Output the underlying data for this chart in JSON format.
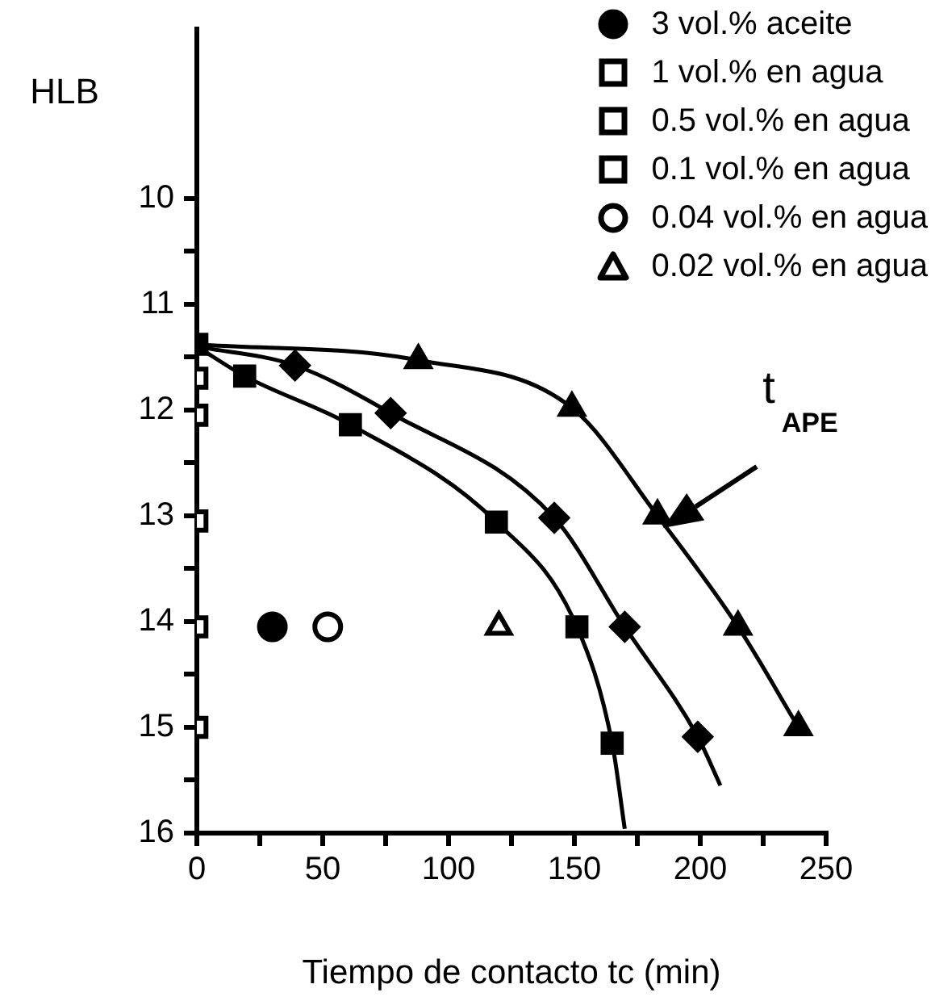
{
  "chart_data": {
    "type": "scatter",
    "ylabel": "HLB",
    "xlabel": "Tiempo de contacto tc (min)",
    "xlim": [
      0,
      250
    ],
    "xticks": [
      0,
      {
        "value": 25,
        "label": null
      },
      50,
      {
        "value": 75,
        "label": null
      },
      100,
      {
        "value": 125,
        "label": null
      },
      150,
      {
        "value": 175,
        "label": null
      },
      200,
      {
        "value": 225,
        "label": null
      },
      250
    ],
    "ylim": [
      16,
      8.4
    ],
    "yticks": [
      10,
      {
        "value": 10.5,
        "label": null
      },
      11,
      {
        "value": 11.5,
        "label": null
      },
      12,
      {
        "value": 12.5,
        "label": null
      },
      13,
      {
        "value": 13.5,
        "label": null
      },
      14,
      {
        "value": 14.5,
        "label": null
      },
      15,
      {
        "value": 15.5,
        "label": null
      },
      16
    ],
    "grid": false,
    "legend": "top right",
    "annotations": [
      {
        "text": "t$_{APE}$",
        "x": 185,
        "y": 13.12
      }
    ],
    "series": [
      {
        "name": "3 vol.% aceite",
        "marker": "circle",
        "color": "#000000",
        "x": [
          30
        ],
        "values": [
          14.05
        ]
      },
      {
        "name": "1 vol.% en agua",
        "marker": "square",
        "color": "#ffffff",
        "x": [
          0,
          0
        ],
        "values": [
          13.05,
          15.0
        ]
      },
      {
        "name": "0.5 vol.% en agua",
        "marker": "square",
        "color": "#ffffff",
        "x": [
          0,
          0
        ],
        "values": [
          12.05,
          14.05
        ]
      },
      {
        "name": "0.1 vol.% en agua",
        "marker": "square",
        "color": "#ffffff",
        "x": [
          0
        ],
        "values": [
          11.7
        ]
      },
      {
        "name": "0.04 vol.% en agua",
        "marker": "circle",
        "color": "#ffffff",
        "x": [
          52
        ],
        "values": [
          14.05
        ]
      },
      {
        "name": "0.02 vol.% en agua",
        "marker": "triangle",
        "color": "#ffffff",
        "x": [
          120
        ],
        "values": [
          14.05
        ]
      },
      {
        "type": "line",
        "marker": "none",
        "color": "#000000",
        "x": [
          0,
          19,
          61,
          119,
          151,
          165,
          170
        ],
        "values": [
          11.4,
          11.68,
          12.14,
          13.06,
          14.05,
          15.15,
          15.96
        ]
      },
      {
        "marker": "square",
        "color": "#000000",
        "x": [
          0,
          19,
          61,
          119,
          151,
          165
        ],
        "values": [
          11.38,
          11.68,
          12.14,
          13.06,
          14.05,
          15.15
        ]
      },
      {
        "type": "line",
        "marker": "none",
        "color": "#000000",
        "x": [
          0,
          39,
          77,
          142,
          170,
          199,
          208
        ],
        "values": [
          11.4,
          11.58,
          12.03,
          13.02,
          14.05,
          15.09,
          15.55
        ]
      },
      {
        "marker": "diamond",
        "color": "#000000",
        "x": [
          39,
          77,
          142,
          170,
          199
        ],
        "values": [
          11.58,
          12.03,
          13.02,
          14.05,
          15.09
        ]
      },
      {
        "type": "line",
        "marker": "none",
        "color": "#000000",
        "x": [
          0,
          88,
          149,
          183,
          215,
          239
        ],
        "values": [
          11.38,
          11.53,
          11.98,
          13.0,
          14.05,
          15.0
        ]
      },
      {
        "marker": "triangle",
        "color": "#000000",
        "x": [
          88,
          149,
          183,
          215,
          239
        ],
        "values": [
          11.53,
          11.98,
          13.0,
          14.05,
          15.0
        ]
      }
    ]
  }
}
